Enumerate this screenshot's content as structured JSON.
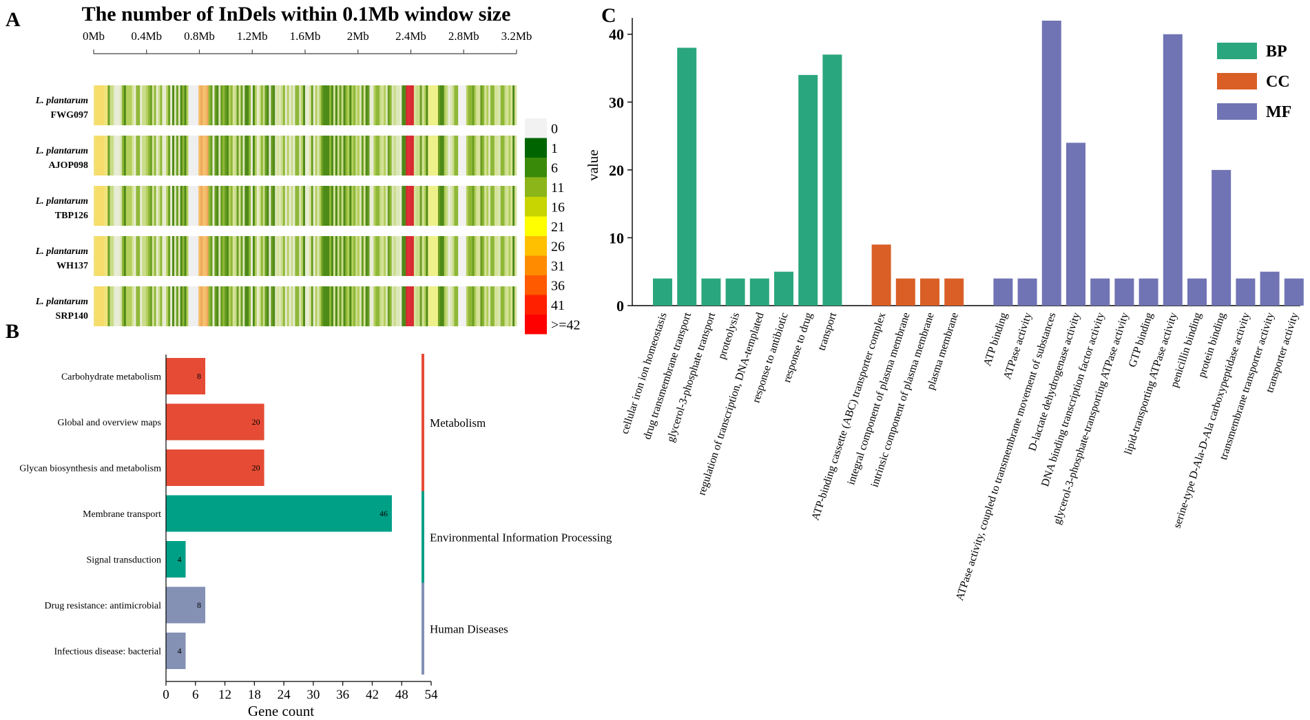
{
  "figure": {
    "panel_labels": {
      "a": "A",
      "b": "B",
      "c": "C"
    }
  },
  "chart_data": [
    {
      "type": "heatmap",
      "title": "The number of InDels within 0.1Mb window size",
      "x_axis_ticks": [
        "0Mb",
        "0.4Mb",
        "0.8Mb",
        "1.2Mb",
        "1.6Mb",
        "2Mb",
        "2.4Mb",
        "2.8Mb",
        "3.2Mb"
      ],
      "x_range_mb": [
        0,
        3.2
      ],
      "rows": [
        {
          "species": "L. plantarum",
          "strain": "FWG097"
        },
        {
          "species": "L. plantarum",
          "strain": "AJOP098"
        },
        {
          "species": "L. plantarum",
          "strain": "TBP126"
        },
        {
          "species": "L. plantarum",
          "strain": "WH137"
        },
        {
          "species": "L. plantarum",
          "strain": "SRP140"
        }
      ],
      "legend": [
        {
          "label": "0",
          "color": "#f2f2f2"
        },
        {
          "label": "1",
          "color": "#006400"
        },
        {
          "label": "6",
          "color": "#3a8a0a"
        },
        {
          "label": "11",
          "color": "#8cb51a"
        },
        {
          "label": "16",
          "color": "#c8d500"
        },
        {
          "label": "21",
          "color": "#ffff00"
        },
        {
          "label": "26",
          "color": "#ffc000"
        },
        {
          "label": "31",
          "color": "#ff8c00"
        },
        {
          "label": "36",
          "color": "#ff5a00"
        },
        {
          "label": ">=42",
          "color": "#ff0000"
        },
        {
          "label": "41",
          "color": "#ff2000"
        }
      ]
    },
    {
      "type": "bar",
      "orientation": "horizontal",
      "xlabel": "Gene count",
      "xlim": [
        0,
        54
      ],
      "x_ticks": [
        "0",
        "6",
        "12",
        "18",
        "24",
        "30",
        "36",
        "42",
        "48",
        "54"
      ],
      "categories": [
        {
          "label": "Carbohydrate metabolism",
          "value": 8,
          "group": "Metabolism"
        },
        {
          "label": "Global and overview maps",
          "value": 20,
          "group": "Metabolism"
        },
        {
          "label": "Glycan biosynthesis and metabolism",
          "value": 20,
          "group": "Metabolism"
        },
        {
          "label": "Membrane transport",
          "value": 46,
          "group": "Environmental Information Processing"
        },
        {
          "label": "Signal transduction",
          "value": 4,
          "group": "Environmental Information Processing"
        },
        {
          "label": "Drug resistance: antimicrobial",
          "value": 8,
          "group": "Human Diseases"
        },
        {
          "label": "Infectious disease: bacterial",
          "value": 4,
          "group": "Human Diseases"
        }
      ],
      "groups": [
        {
          "name": "Metabolism",
          "color": "#e64b35"
        },
        {
          "name": "Environmental Information Processing",
          "color": "#00a087"
        },
        {
          "name": "Human Diseases",
          "color": "#8491b4"
        }
      ]
    },
    {
      "type": "bar",
      "ylabel": "value",
      "ylim": [
        0,
        42
      ],
      "y_ticks": [
        "0",
        "10",
        "20",
        "30",
        "40"
      ],
      "legend": [
        {
          "name": "BP",
          "color": "#2aa67e"
        },
        {
          "name": "CC",
          "color": "#d95f26"
        },
        {
          "name": "MF",
          "color": "#7074b4"
        }
      ],
      "groups": [
        {
          "name": "BP",
          "items": [
            {
              "label": "cellular iron ion homeostasis",
              "value": 4
            },
            {
              "label": "drug transmembrane transport",
              "value": 38
            },
            {
              "label": "glycerol-3-phosphate transport",
              "value": 4
            },
            {
              "label": "proteolysis",
              "value": 4
            },
            {
              "label": "regulation of transcription, DNA-templated",
              "value": 4
            },
            {
              "label": "response to antibiotic",
              "value": 5
            },
            {
              "label": "response to drug",
              "value": 34
            },
            {
              "label": "transport",
              "value": 37
            }
          ]
        },
        {
          "name": "CC",
          "items": [
            {
              "label": "ATP-binding cassette (ABC) transporter complex",
              "value": 9
            },
            {
              "label": "integral component of plasma membrane",
              "value": 4
            },
            {
              "label": "intrinsic component of plasma membrane",
              "value": 4
            },
            {
              "label": "plasma membrane",
              "value": 4
            }
          ]
        },
        {
          "name": "MF",
          "items": [
            {
              "label": "ATP binding",
              "value": 4
            },
            {
              "label": "ATPase activity",
              "value": 4
            },
            {
              "label": "ATPase activity, coupled to transmembrane movement of substances",
              "value": 42
            },
            {
              "label": "D-lactate dehydrogenase activity",
              "value": 24
            },
            {
              "label": "DNA binding transcription factor activity",
              "value": 4
            },
            {
              "label": "glycerol-3-phosphate-transporting ATPase activity",
              "value": 4
            },
            {
              "label": "GTP binding",
              "value": 4
            },
            {
              "label": "lipid-transporting ATPase activity",
              "value": 40
            },
            {
              "label": "penicillin binding",
              "value": 4
            },
            {
              "label": "protein binding",
              "value": 20
            },
            {
              "label": "serine-type D-Ala-D-Ala carboxypeptidase activity",
              "value": 4
            },
            {
              "label": "transmembrane transporter activity",
              "value": 5
            },
            {
              "label": "transporter activity",
              "value": 4
            }
          ]
        }
      ]
    }
  ]
}
